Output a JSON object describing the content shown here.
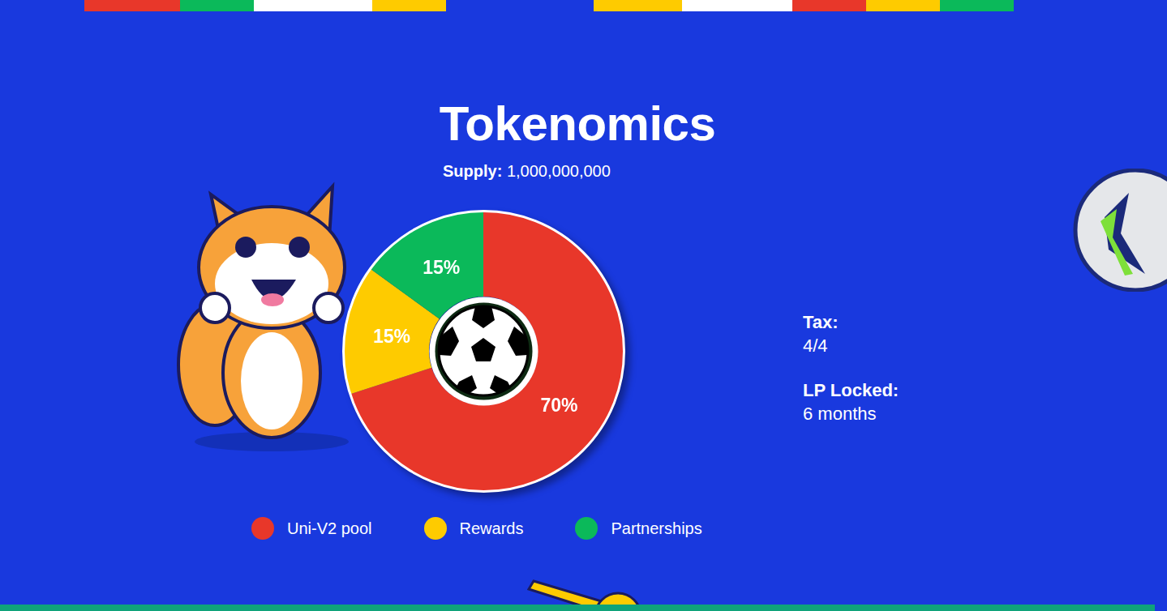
{
  "chart_data": {
    "type": "donut",
    "title": "Tokenomics",
    "subtitle": "Supply: 1,000,000,000",
    "categories": [
      "Uni-V2 pool",
      "Rewards",
      "Partnerships"
    ],
    "values": [
      70,
      15,
      15
    ],
    "value_labels": [
      "70%",
      "15%",
      "15%"
    ],
    "colors": [
      "#e8372a",
      "#fecb00",
      "#0bb95a"
    ],
    "data_labels": true,
    "legend": "bottom",
    "annotations": [
      {
        "label": "Tax:",
        "text": "4/4"
      },
      {
        "label": "LP Locked:",
        "text": "6 months"
      }
    ]
  }
}
